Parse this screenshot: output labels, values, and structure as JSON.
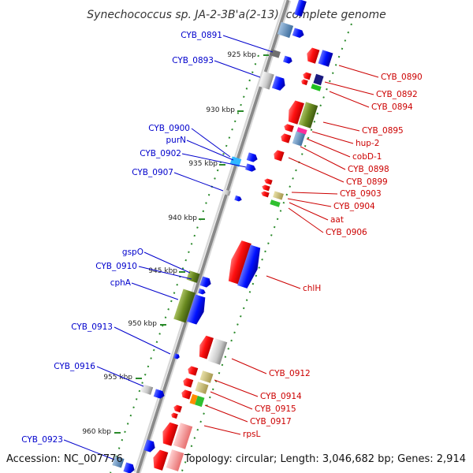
{
  "header": {
    "title": "Synechococcus sp. JA-2-3B'a(2-13), complete genome"
  },
  "footer": {
    "accession": "Accession: NC_007776",
    "summary": "Topology: circular; Length: 3,046,682 bp; Genes: 2,914"
  },
  "colors": {
    "strand_line": "#8a8a8a",
    "track_dots": "#2a8a2a",
    "plus_label": "#0000cc",
    "minus_label": "#cc0000",
    "plus_gene": "#0a1cff",
    "minus_gene": "#ff1a1a"
  },
  "kbp_ticks": [
    "925 kbp",
    "930 kbp",
    "935 kbp",
    "940 kbp",
    "945 kbp",
    "950 kbp",
    "955 kbp",
    "960 kbp"
  ],
  "left_labels": [
    "CYB_0891",
    "CYB_0893",
    "CYB_0900",
    "purN",
    "CYB_0902",
    "CYB_0907",
    "gspO",
    "CYB_0910",
    "cphA",
    "CYB_0913",
    "CYB_0916",
    "CYB_0923"
  ],
  "right_labels": [
    "CYB_0890",
    "CYB_0892",
    "CYB_0894",
    "CYB_0895",
    "hup-2",
    "cobD-1",
    "CYB_0898",
    "CYB_0899",
    "CYB_0903",
    "CYB_0904",
    "aat",
    "CYB_0906",
    "chlH",
    "CYB_0912",
    "CYB_0914",
    "CYB_0915",
    "CYB_0917",
    "rpsL"
  ],
  "icons": {
    "gene_arrow": "pentagon-arrow-icon"
  }
}
